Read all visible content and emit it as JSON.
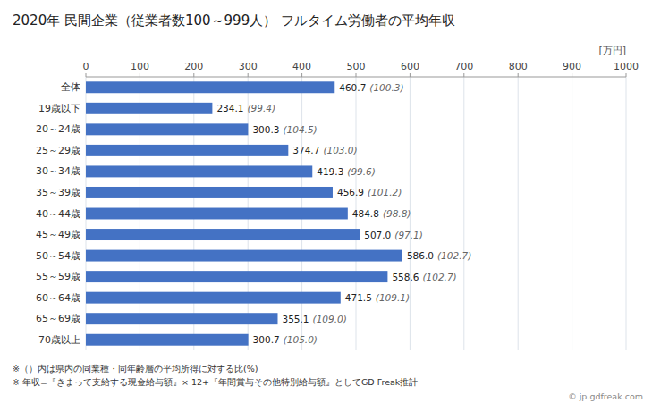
{
  "chart_data": {
    "type": "bar",
    "orientation": "horizontal",
    "title": "2020年 民間企業（従業者数100～999人） フルタイム労働者の平均年収",
    "xlabel": "[万円]",
    "categories": [
      "全体",
      "19歳以下",
      "20～24歳",
      "25～29歳",
      "30～34歳",
      "35～39歳",
      "40～44歳",
      "45～49歳",
      "50～54歳",
      "55～59歳",
      "60～64歳",
      "65～69歳",
      "70歳以上"
    ],
    "values": [
      460.7,
      234.1,
      300.3,
      374.7,
      419.3,
      456.9,
      484.8,
      507.0,
      586.0,
      558.6,
      471.5,
      355.1,
      300.7
    ],
    "value_labels": [
      "460.7",
      "234.1",
      "300.3",
      "374.7",
      "419.3",
      "456.9",
      "484.8",
      "507.0",
      "586.0",
      "558.6",
      "471.5",
      "355.1",
      "300.7"
    ],
    "ratios": [
      100.3,
      99.4,
      104.5,
      103.0,
      99.6,
      101.2,
      98.8,
      97.1,
      102.7,
      102.7,
      109.1,
      109.0,
      105.0
    ],
    "ratio_labels": [
      "(100.3)",
      "(99.4)",
      "(104.5)",
      "(103.0)",
      "(99.6)",
      "(101.2)",
      "(98.8)",
      "(97.1)",
      "(102.7)",
      "(102.7)",
      "(109.1)",
      "(109.0)",
      "(105.0)"
    ],
    "color": "#4472C4",
    "xlim": [
      0,
      1000
    ],
    "xticks": [
      0,
      100,
      200,
      300,
      400,
      500,
      600,
      700,
      800,
      900,
      1000
    ],
    "grid": true,
    "data_labels": true,
    "annotations": [
      "※（）内は県内の同業種・同年齢層の平均所得に対する比(%)",
      "※ 年収=『きまって支給する現金給与額』× 12+『年間賞与その他特別給与額』としてGD Freak推計",
      "© jp.gdfreak.com"
    ]
  }
}
